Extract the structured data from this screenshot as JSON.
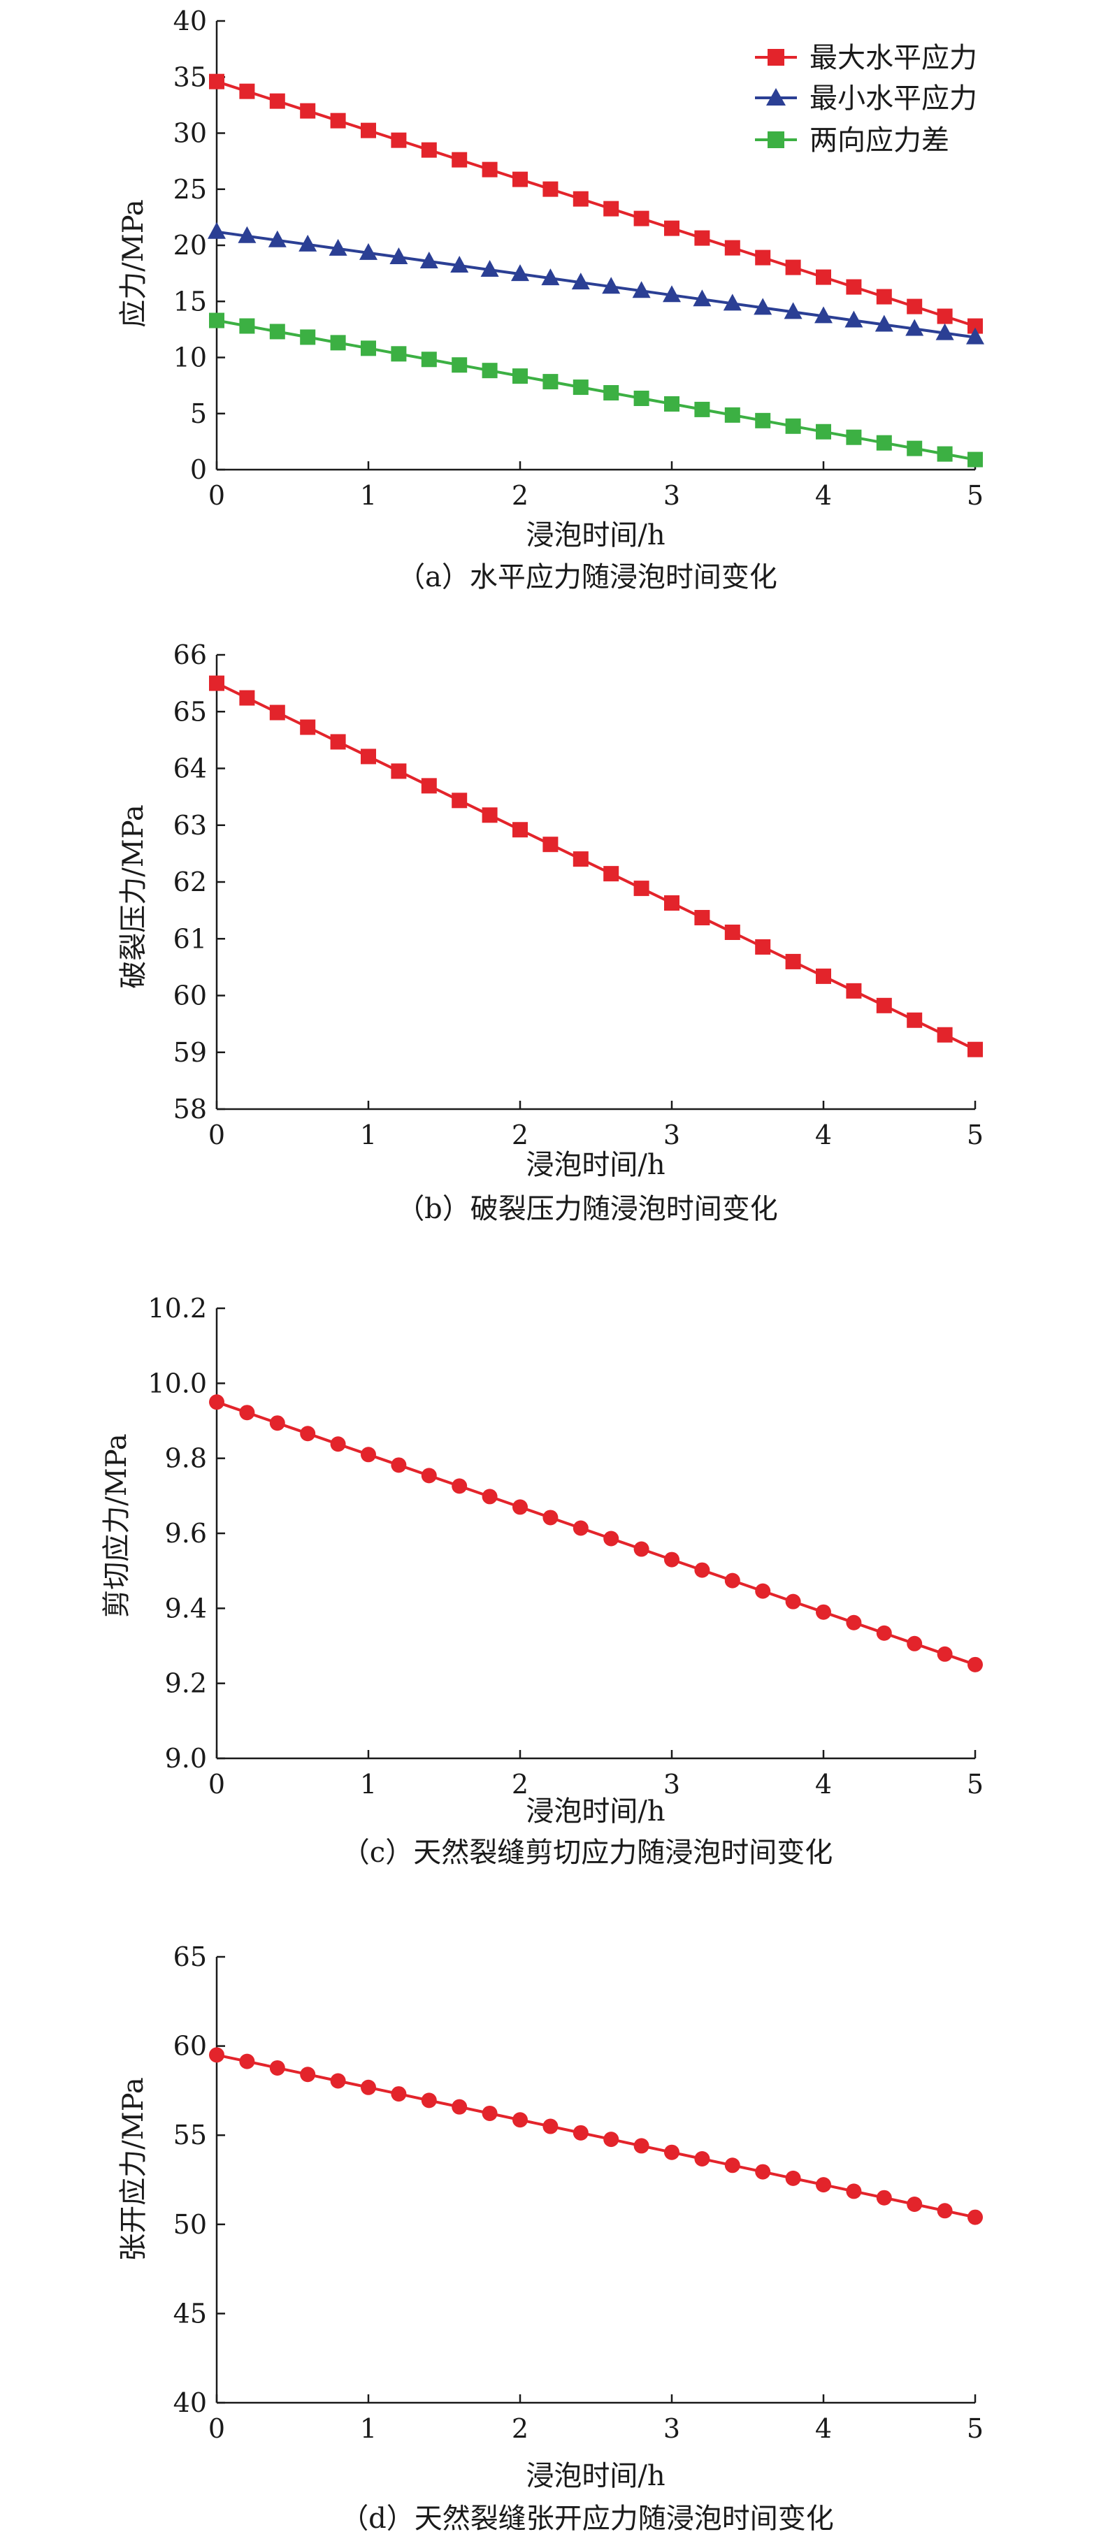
{
  "chart_data": [
    {
      "type": "line",
      "xlabel": "浸泡时间/h",
      "ylabel": "应力/MPa",
      "caption": "（a）水平应力随浸泡时间变化",
      "xlim": [
        0,
        5
      ],
      "ylim": [
        0,
        40
      ],
      "xticks": [
        "0",
        "1",
        "2",
        "3",
        "4",
        "5"
      ],
      "yticks": [
        "0",
        "5",
        "10",
        "15",
        "20",
        "25",
        "30",
        "35",
        "40"
      ],
      "x": [
        0,
        0.2,
        0.4,
        0.6,
        0.8,
        1.0,
        1.2,
        1.4,
        1.6,
        1.8,
        2.0,
        2.2,
        2.4,
        2.6,
        2.8,
        3.0,
        3.2,
        3.4,
        3.6,
        3.8,
        4.0,
        4.2,
        4.4,
        4.6,
        4.8,
        5.0
      ],
      "legend_position": "top-right",
      "series": [
        {
          "name": "最大水平应力",
          "color": "#e3242b",
          "marker": "square",
          "start": 34.6,
          "end": 12.8
        },
        {
          "name": "最小水平应力",
          "color": "#2b3f94",
          "marker": "triangle",
          "start": 21.2,
          "end": 11.8
        },
        {
          "name": "两向应力差",
          "color": "#3cb043",
          "marker": "square",
          "start": 13.3,
          "end": 0.9
        }
      ]
    },
    {
      "type": "line",
      "xlabel": "浸泡时间/h",
      "ylabel": "破裂压力/MPa",
      "caption": "（b）破裂压力随浸泡时间变化",
      "xlim": [
        0,
        5
      ],
      "ylim": [
        58,
        66
      ],
      "xticks": [
        "0",
        "1",
        "2",
        "3",
        "4",
        "5"
      ],
      "yticks": [
        "58",
        "59",
        "60",
        "61",
        "62",
        "63",
        "64",
        "65",
        "66"
      ],
      "x": [
        0,
        0.2,
        0.4,
        0.6,
        0.8,
        1.0,
        1.2,
        1.4,
        1.6,
        1.8,
        2.0,
        2.2,
        2.4,
        2.6,
        2.8,
        3.0,
        3.2,
        3.4,
        3.6,
        3.8,
        4.0,
        4.2,
        4.4,
        4.6,
        4.8,
        5.0
      ],
      "series": [
        {
          "color": "#e3242b",
          "marker": "square",
          "start": 65.5,
          "end": 59.05
        }
      ]
    },
    {
      "type": "line",
      "xlabel": "浸泡时间/h",
      "ylabel": "剪切应力/MPa",
      "caption": "（c）天然裂缝剪切应力随浸泡时间变化",
      "xlim": [
        0,
        5
      ],
      "ylim": [
        9.0,
        10.2
      ],
      "xticks": [
        "0",
        "1",
        "2",
        "3",
        "4",
        "5"
      ],
      "yticks": [
        "9.0",
        "9.2",
        "9.4",
        "9.6",
        "9.8",
        "10.0",
        "10.2"
      ],
      "x": [
        0,
        0.2,
        0.4,
        0.6,
        0.8,
        1.0,
        1.2,
        1.4,
        1.6,
        1.8,
        2.0,
        2.2,
        2.4,
        2.6,
        2.8,
        3.0,
        3.2,
        3.4,
        3.6,
        3.8,
        4.0,
        4.2,
        4.4,
        4.6,
        4.8,
        5.0
      ],
      "series": [
        {
          "color": "#e3242b",
          "marker": "circle",
          "start": 9.95,
          "end": 9.25
        }
      ]
    },
    {
      "type": "line",
      "xlabel": "浸泡时间/h",
      "ylabel": "张开应力/MPa",
      "caption": "（d）天然裂缝张开应力随浸泡时间变化",
      "xlim": [
        0,
        5
      ],
      "ylim": [
        40,
        65
      ],
      "xticks": [
        "0",
        "1",
        "2",
        "3",
        "4",
        "5"
      ],
      "yticks": [
        "40",
        "45",
        "50",
        "55",
        "60",
        "65"
      ],
      "x": [
        0,
        0.2,
        0.4,
        0.6,
        0.8,
        1.0,
        1.2,
        1.4,
        1.6,
        1.8,
        2.0,
        2.2,
        2.4,
        2.6,
        2.8,
        3.0,
        3.2,
        3.4,
        3.6,
        3.8,
        4.0,
        4.2,
        4.4,
        4.6,
        4.8,
        5.0
      ],
      "series": [
        {
          "color": "#e3242b",
          "marker": "circle",
          "start": 59.5,
          "end": 50.4
        }
      ]
    }
  ]
}
